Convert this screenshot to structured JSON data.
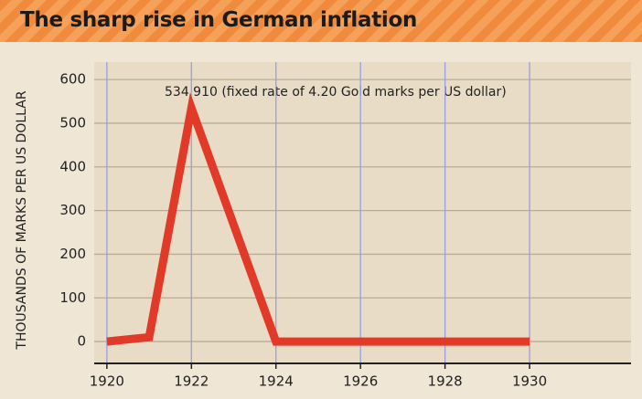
{
  "chart_data": {
    "type": "line",
    "title": "The sharp rise in German inflation",
    "y_label": "THOUSANDS OF MARKS PER US DOLLAR",
    "annotation": "534.910  (fixed rate of 4.20 Gold marks per US dollar)",
    "x": [
      1920,
      1921,
      1922,
      1924,
      1930
    ],
    "values": [
      0,
      10,
      534.91,
      0,
      0
    ],
    "color": "#e23a28",
    "xlim": [
      1919.7,
      1932.4
    ],
    "xticks": [
      1920,
      1922,
      1924,
      1926,
      1928,
      1930
    ],
    "ylim": [
      -50,
      640
    ],
    "yticks": [
      0,
      100,
      200,
      300,
      400,
      500,
      600
    ],
    "grid": true
  }
}
